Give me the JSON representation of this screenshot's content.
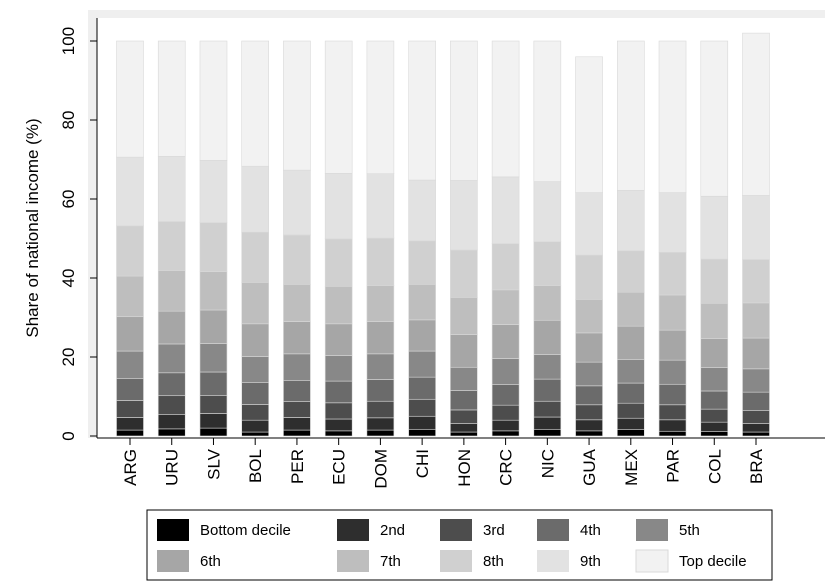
{
  "chart_data": {
    "type": "bar",
    "stacked": true,
    "title": "",
    "xlabel": "",
    "ylabel": "Share of national income (%)",
    "ylim": [
      0,
      100
    ],
    "yticks": [
      0,
      20,
      40,
      60,
      80,
      100
    ],
    "grid": false,
    "legend_position": "bottom",
    "categories": [
      "ARG",
      "URU",
      "SLV",
      "BOL",
      "PER",
      "ECU",
      "DOM",
      "CHI",
      "HON",
      "CRC",
      "NIC",
      "GUA",
      "MEX",
      "PAR",
      "COL",
      "BRA"
    ],
    "series": [
      {
        "name": "Bottom decile",
        "color": "#000000",
        "values": [
          1.5,
          1.8,
          2.0,
          1.0,
          1.5,
          1.3,
          1.5,
          1.7,
          1.0,
          1.3,
          1.7,
          1.3,
          1.6,
          1.2,
          1.1,
          1.0
        ]
      },
      {
        "name": "2nd",
        "color": "#2e2e2e",
        "values": [
          3.2,
          3.6,
          3.7,
          3.0,
          3.2,
          3.0,
          3.1,
          3.3,
          2.2,
          2.7,
          3.1,
          2.8,
          2.9,
          2.9,
          2.4,
          2.2
        ]
      },
      {
        "name": "3rd",
        "color": "#4d4d4d",
        "values": [
          4.3,
          4.8,
          4.6,
          4.0,
          4.0,
          4.1,
          4.2,
          4.3,
          3.4,
          3.8,
          4.0,
          3.8,
          3.8,
          3.8,
          3.3,
          3.3
        ]
      },
      {
        "name": "4th",
        "color": "#6b6b6b",
        "values": [
          5.6,
          5.8,
          5.9,
          5.5,
          5.4,
          5.5,
          5.5,
          5.6,
          4.9,
          5.2,
          5.6,
          4.8,
          5.1,
          5.2,
          4.6,
          4.6
        ]
      },
      {
        "name": "5th",
        "color": "#888888",
        "values": [
          6.9,
          7.3,
          7.2,
          6.6,
          6.7,
          6.5,
          6.5,
          6.6,
          5.9,
          6.6,
          6.2,
          6.0,
          6.0,
          6.1,
          5.9,
          5.9
        ]
      },
      {
        "name": "6th",
        "color": "#a6a6a6",
        "values": [
          8.7,
          8.3,
          8.5,
          8.3,
          8.2,
          8.0,
          8.2,
          7.9,
          8.3,
          8.6,
          8.7,
          7.4,
          8.4,
          7.6,
          7.4,
          7.8
        ]
      },
      {
        "name": "7th",
        "color": "#bebebe",
        "values": [
          10.3,
          10.3,
          9.7,
          10.5,
          9.4,
          9.5,
          9.1,
          9.0,
          9.4,
          8.8,
          8.8,
          8.5,
          8.6,
          8.9,
          8.9,
          8.9
        ]
      },
      {
        "name": "8th",
        "color": "#d0d0d0",
        "values": [
          12.7,
          12.4,
          12.4,
          12.7,
          12.5,
          12.0,
          12.0,
          11.0,
          12.0,
          11.7,
          11.1,
          11.2,
          10.5,
          10.8,
          11.2,
          11.0
        ]
      },
      {
        "name": "9th",
        "color": "#e2e2e2",
        "values": [
          17.4,
          16.5,
          15.8,
          16.7,
          16.4,
          16.6,
          16.3,
          15.4,
          17.6,
          16.9,
          15.2,
          15.8,
          15.3,
          15.1,
          15.9,
          16.2
        ]
      },
      {
        "name": "Top decile",
        "color": "#f2f2f2",
        "values": [
          29.4,
          29.2,
          30.2,
          31.7,
          32.7,
          33.5,
          33.6,
          35.2,
          35.3,
          34.4,
          35.6,
          34.4,
          37.8,
          38.4,
          39.3,
          41.1
        ]
      }
    ]
  }
}
